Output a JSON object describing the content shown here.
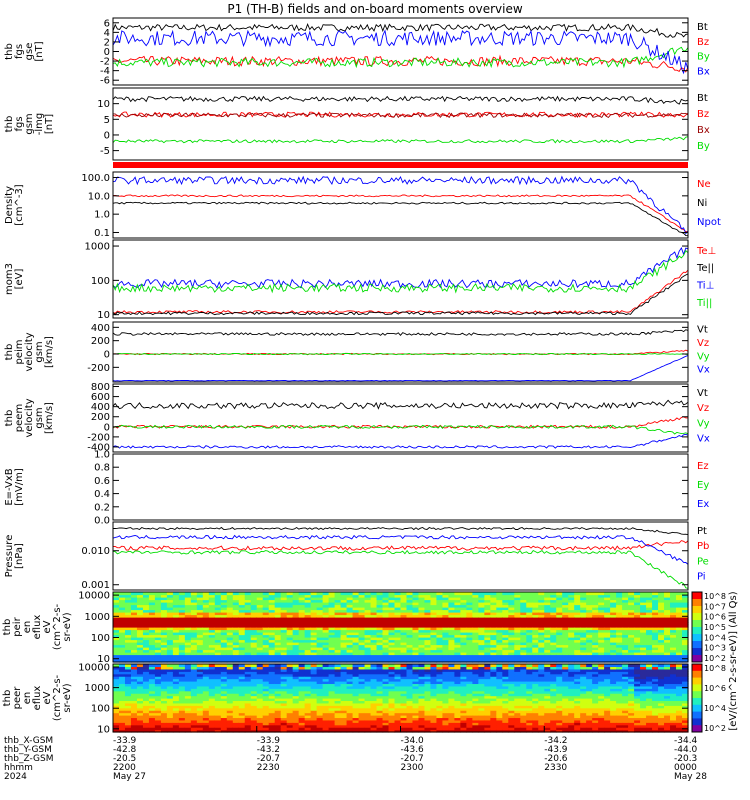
{
  "title": "P1  (TH-B) fields and on-board moments overview",
  "colors": {
    "black": "#000000",
    "red": "#ff0000",
    "blue": "#0000ff",
    "green": "#00dd00",
    "darkred": "#990000"
  },
  "chart_data": [
    {
      "id": "fgs_gse",
      "type": "line",
      "ylabel": [
        "thb",
        "fgs",
        "gse",
        "[nT]"
      ],
      "ylim": [
        -7,
        7
      ],
      "ticks": [
        "6",
        "4",
        "2",
        "0",
        "-2",
        "-4",
        "-6"
      ],
      "tick_values": [
        6,
        4,
        2,
        0,
        -2,
        -4,
        -6
      ],
      "series": [
        {
          "name": "Bt",
          "color": "#000000",
          "level": 5.0,
          "end": 3.0,
          "noise": 0.7
        },
        {
          "name": "Bz",
          "color": "#ff0000",
          "level": -2.0,
          "end": -3.5,
          "noise": 1.0
        },
        {
          "name": "By",
          "color": "#00dd00",
          "level": -2.3,
          "end": 1.0,
          "noise": 0.9
        },
        {
          "name": "Bx",
          "color": "#0000ff",
          "level": 2.8,
          "end": -3.5,
          "noise": 1.6
        }
      ]
    },
    {
      "id": "fgs_gsm",
      "type": "line",
      "ylabel": [
        "thb",
        "fgs",
        "gsm",
        "-lmg",
        "[nT]"
      ],
      "ylim": [
        -8,
        15
      ],
      "ticks": [
        "10",
        "5",
        "0",
        "-5"
      ],
      "tick_values": [
        10,
        5,
        0,
        -5
      ],
      "series": [
        {
          "name": "Bt",
          "color": "#000000",
          "level": 11.5,
          "end": 10.5,
          "noise": 0.8
        },
        {
          "name": "Bz",
          "color": "#ff0000",
          "level": 6.5,
          "end": 6.5,
          "noise": 0.8
        },
        {
          "name": "Bx",
          "color": "#990000",
          "level": 6.3,
          "end": 6.5,
          "noise": 0.7
        },
        {
          "name": "By",
          "color": "#00dd00",
          "level": -2.0,
          "end": -1.0,
          "noise": 0.5
        }
      ]
    },
    {
      "id": "density",
      "type": "line",
      "scale": "log",
      "ylabel": [
        "Density",
        "[cm^-3]"
      ],
      "ylim": [
        0.05,
        200
      ],
      "ticks": [
        "100.0",
        "10.0",
        "1.0",
        "0.1"
      ],
      "tick_values": [
        100,
        10,
        1,
        0.1
      ],
      "series": [
        {
          "name": "Ne",
          "color": "#ff0000",
          "level": 10,
          "end": 0.1,
          "noise": 0.05
        },
        {
          "name": "Ni",
          "color": "#000000",
          "level": 4,
          "end": 0.06,
          "noise": 0.05
        },
        {
          "name": "Npot",
          "color": "#0000ff",
          "level": 70,
          "end": 0.08,
          "noise": 0.2
        }
      ]
    },
    {
      "id": "temperature",
      "type": "line",
      "scale": "log",
      "ylabel": [
        "mom3",
        "[eV]"
      ],
      "ylim": [
        8,
        1500
      ],
      "ticks": [
        "1000",
        "100",
        "10"
      ],
      "tick_values": [
        1000,
        100,
        10
      ],
      "series": [
        {
          "name": "Te⊥",
          "color": "#ff0000",
          "level": 12,
          "end": 200,
          "noise": 0.04
        },
        {
          "name": "Te||",
          "color": "#000000",
          "level": 11,
          "end": 150,
          "noise": 0.04
        },
        {
          "name": "Ti⊥",
          "color": "#0000ff",
          "level": 80,
          "end": 900,
          "noise": 0.12
        },
        {
          "name": "Ti||",
          "color": "#00dd00",
          "level": 60,
          "end": 700,
          "noise": 0.12
        }
      ]
    },
    {
      "id": "peim_velocity",
      "type": "line",
      "ylabel": [
        "thb",
        "peim",
        "velocity",
        "gsm",
        "[km/s]"
      ],
      "ylim": [
        -420,
        480
      ],
      "ticks": [
        "400",
        "200",
        "0",
        "-200"
      ],
      "tick_values": [
        400,
        200,
        0,
        -200
      ],
      "series": [
        {
          "name": "Vt",
          "color": "#000000",
          "level": 300,
          "end": 350,
          "noise": 20
        },
        {
          "name": "Vz",
          "color": "#ff0000",
          "level": 0,
          "end": 50,
          "noise": 10
        },
        {
          "name": "Vy",
          "color": "#00dd00",
          "level": 0,
          "end": 0,
          "noise": 8
        },
        {
          "name": "Vx",
          "color": "#0000ff",
          "level": -400,
          "end": -20,
          "noise": 4
        }
      ]
    },
    {
      "id": "peem_velocity",
      "type": "line",
      "ylabel": [
        "thb",
        "peem",
        "velocity",
        "gsm",
        "[km/s]"
      ],
      "ylim": [
        -500,
        850
      ],
      "ticks": [
        "800",
        "600",
        "400",
        "200",
        "0",
        "-200",
        "-400"
      ],
      "tick_values": [
        800,
        600,
        400,
        200,
        0,
        -200,
        -400
      ],
      "series": [
        {
          "name": "Vt",
          "color": "#000000",
          "level": 420,
          "end": 500,
          "noise": 60
        },
        {
          "name": "Vz",
          "color": "#ff0000",
          "level": 0,
          "end": 200,
          "noise": 30
        },
        {
          "name": "Vy",
          "color": "#00dd00",
          "level": 0,
          "end": -150,
          "noise": 30
        },
        {
          "name": "Vx",
          "color": "#0000ff",
          "level": -400,
          "end": -150,
          "noise": 25
        }
      ]
    },
    {
      "id": "efield",
      "type": "line",
      "ylabel": [
        "E=-VxB",
        "[mV/m]"
      ],
      "ylim": [
        0,
        1
      ],
      "ticks": [
        "1.0",
        "0.8",
        "0.6",
        "0.4",
        "0.2",
        "0.0"
      ],
      "tick_values": [
        1,
        0.8,
        0.6,
        0.4,
        0.2,
        0
      ],
      "series": [
        {
          "name": "Ez",
          "color": "#ff0000"
        },
        {
          "name": "Ey",
          "color": "#00dd00"
        },
        {
          "name": "Ex",
          "color": "#0000ff"
        }
      ]
    },
    {
      "id": "pressure",
      "type": "line",
      "scale": "log",
      "ylabel": [
        "Pressure",
        "[nPa]"
      ],
      "ylim": [
        0.0007,
        0.07
      ],
      "ticks": [
        "0.010",
        "0.001"
      ],
      "tick_values": [
        0.01,
        0.001
      ],
      "series": [
        {
          "name": "Pt",
          "color": "#000000",
          "level": 0.045,
          "end": 0.03,
          "noise": 0.03
        },
        {
          "name": "Pb",
          "color": "#ff0000",
          "level": 0.012,
          "end": 0.02,
          "noise": 0.06
        },
        {
          "name": "Pe",
          "color": "#00dd00",
          "level": 0.009,
          "end": 0.0008,
          "noise": 0.05
        },
        {
          "name": "Pi",
          "color": "#0000ff",
          "level": 0.025,
          "end": 0.004,
          "noise": 0.05
        }
      ]
    },
    {
      "id": "peir_spectrogram",
      "type": "heatmap",
      "scale": "log",
      "ylabel": [
        "thb",
        "peir",
        "en",
        "eflux",
        "eV",
        "(cm^2-s-",
        "sr-eV)"
      ],
      "ylim": [
        7,
        14000
      ],
      "ticks": [
        "10000",
        "1000",
        "100",
        "10"
      ],
      "tick_values": [
        10000,
        1000,
        100,
        10
      ]
    },
    {
      "id": "peer_spectrogram",
      "type": "heatmap",
      "scale": "log",
      "ylabel": [
        "thb",
        "peer",
        "en",
        "eflux",
        "eV",
        "(cm^2-s-",
        "sr-eV)"
      ],
      "ylim": [
        7,
        14000
      ],
      "ticks": [
        "10000",
        "1000",
        "100",
        "10"
      ],
      "tick_values": [
        10000,
        1000,
        100,
        10
      ]
    }
  ],
  "colorbar": {
    "label": "[eV/(cm^2-s-sr-eV)] (All Qs)",
    "top_ticks": [
      "10^8",
      "10^7",
      "10^6",
      "10^5",
      "10^4",
      "10^3",
      "10^2"
    ],
    "bottom_ticks": [
      "10^8",
      "10^6",
      "10^4",
      "10^2"
    ]
  },
  "x_axis": {
    "rows": [
      {
        "label": "thb_X-GSM",
        "values": [
          "-33.9",
          "-33.9",
          "-34.0",
          "-34.2",
          "-34.4"
        ]
      },
      {
        "label": "thb_Y-GSM",
        "values": [
          "-42.8",
          "-43.2",
          "-43.6",
          "-43.9",
          "-44.0"
        ]
      },
      {
        "label": "thb_Z-GSM",
        "values": [
          "-20.5",
          "-20.7",
          "-20.7",
          "-20.6",
          "-20.3"
        ]
      },
      {
        "label": "hhmm",
        "values": [
          "2200",
          "2230",
          "2300",
          "2330",
          "0000"
        ]
      },
      {
        "label": "2024",
        "values": [
          "May 27",
          "",
          "",
          "",
          "May 28"
        ]
      }
    ]
  }
}
